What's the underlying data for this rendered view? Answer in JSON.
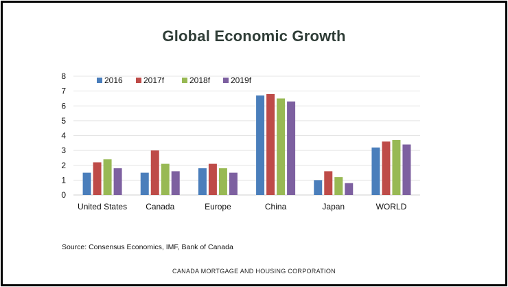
{
  "page": {
    "title": "Global Economic Growth",
    "source": "Source: Consensus Economics, IMF, Bank of Canada",
    "footer": "CANADA MORTGAGE AND HOUSING CORPORATION"
  },
  "chart_data": {
    "type": "bar",
    "title": "Global Economic Growth",
    "xlabel": "",
    "ylabel": "",
    "ylim": [
      0,
      8
    ],
    "yticks": [
      0,
      1,
      2,
      3,
      4,
      5,
      6,
      7,
      8
    ],
    "grid": true,
    "legend_position": "top-left",
    "categories": [
      "United States",
      "Canada",
      "Europe",
      "China",
      "Japan",
      "WORLD"
    ],
    "series": [
      {
        "name": "2016",
        "color": "#4a7ebb",
        "values": [
          1.5,
          1.5,
          1.8,
          6.7,
          1.0,
          3.2
        ]
      },
      {
        "name": "2017f",
        "color": "#be4b48",
        "values": [
          2.2,
          3.0,
          2.1,
          6.8,
          1.6,
          3.6
        ]
      },
      {
        "name": "2018f",
        "color": "#98b954",
        "values": [
          2.4,
          2.1,
          1.8,
          6.5,
          1.2,
          3.7
        ]
      },
      {
        "name": "2019f",
        "color": "#7d60a0",
        "values": [
          1.8,
          1.6,
          1.5,
          6.3,
          0.8,
          3.4
        ]
      }
    ]
  }
}
